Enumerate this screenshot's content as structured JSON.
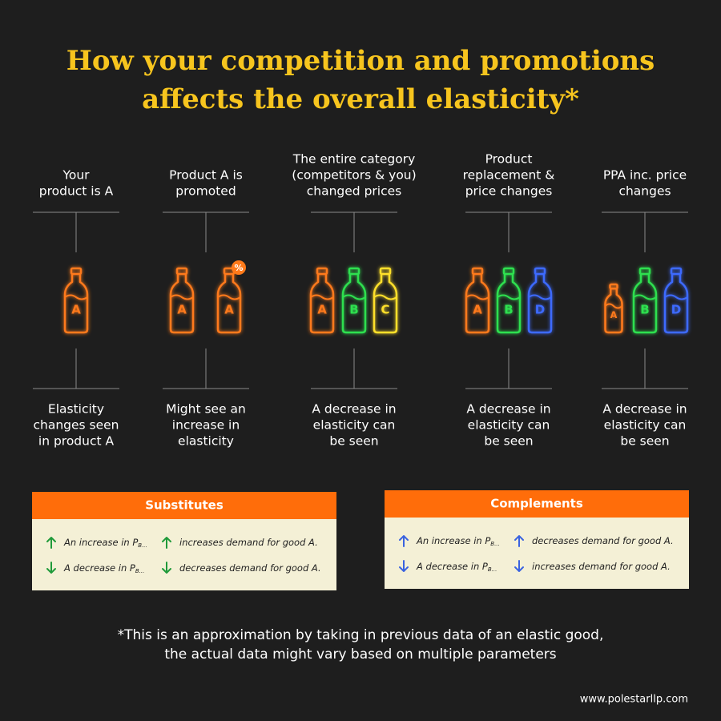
{
  "header": {
    "title": [
      "How your competition and promotions",
      "affects the overall elasticity*"
    ]
  },
  "columns": [
    {
      "top": [
        "Your",
        "product is A"
      ],
      "bottles": [
        {
          "letter": "A",
          "color": "#ff7a1a"
        }
      ],
      "bottom": [
        "Elasticity",
        "changes seen",
        "in product A"
      ]
    },
    {
      "top": [
        "Product A is",
        "promoted"
      ],
      "bottles": [
        {
          "letter": "A",
          "color": "#ff7a1a"
        },
        {
          "letter": "A",
          "color": "#ff7a1a",
          "badge": "%"
        }
      ],
      "bottom": [
        "Might see an",
        "increase in",
        "elasticity"
      ]
    },
    {
      "top": [
        "The entire category",
        "(competitors & you)",
        "changed prices"
      ],
      "bottles": [
        {
          "letter": "A",
          "color": "#ff7a1a"
        },
        {
          "letter": "B",
          "color": "#2ee04f"
        },
        {
          "letter": "C",
          "color": "#ffe02b"
        }
      ],
      "bottom": [
        "A decrease in",
        "elasticity can",
        "be seen"
      ]
    },
    {
      "top": [
        "Product",
        "replacement &",
        "price changes"
      ],
      "bottles": [
        {
          "letter": "A",
          "color": "#ff7a1a"
        },
        {
          "letter": "B",
          "color": "#2ee04f"
        },
        {
          "letter": "D",
          "color": "#3d6bff"
        }
      ],
      "bottom": [
        "A decrease in",
        "elasticity can",
        "be seen"
      ]
    },
    {
      "top": [
        "PPA inc. price",
        "changes"
      ],
      "bottles": [
        {
          "letter": "A",
          "color": "#ff7a1a"
        },
        {
          "letter": "B",
          "color": "#2ee04f"
        },
        {
          "letter": "D",
          "color": "#3d6bff"
        }
      ],
      "bottom": [
        "A decrease in",
        "elasticity can",
        "be seen"
      ]
    }
  ],
  "tables": [
    {
      "title": "Substitutes",
      "arrow_color": "#1f9a3a",
      "rows": [
        [
          {
            "text": "An increase in P",
            "sub": "B..."
          },
          {
            "text": "increases demand for good A."
          }
        ],
        [
          {
            "text": "A decrease in P",
            "sub": "B..."
          },
          {
            "text": "decreases demand for good A."
          }
        ]
      ]
    },
    {
      "title": "Complements",
      "arrow_color": "#3a63e0",
      "rows": [
        [
          {
            "text": "An increase in P",
            "sub": "B..."
          },
          {
            "text": "decreases demand for good A."
          }
        ],
        [
          {
            "text": "A decrease in P",
            "sub": "B..."
          },
          {
            "text": "increases demand for good A."
          }
        ]
      ]
    }
  ],
  "footnote": [
    "*This is an approximation by taking in previous data of an elastic good,",
    "the actual data might vary based on multiple parameters"
  ],
  "url": "www.polestarllp.com"
}
